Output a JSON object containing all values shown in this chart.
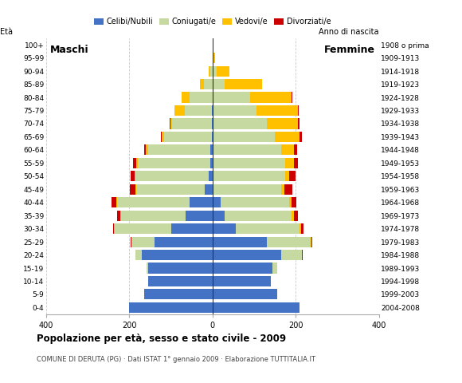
{
  "age_groups": [
    "100+",
    "95-99",
    "90-94",
    "85-89",
    "80-84",
    "75-79",
    "70-74",
    "65-69",
    "60-64",
    "55-59",
    "50-54",
    "45-49",
    "40-44",
    "35-39",
    "30-34",
    "25-29",
    "20-24",
    "15-19",
    "10-14",
    "5-9",
    "0-4"
  ],
  "birth_years": [
    "1908 o prima",
    "1909-1913",
    "1914-1918",
    "1919-1923",
    "1924-1928",
    "1929-1933",
    "1934-1938",
    "1939-1943",
    "1944-1948",
    "1949-1953",
    "1954-1958",
    "1959-1963",
    "1964-1968",
    "1969-1973",
    "1974-1978",
    "1979-1983",
    "1984-1988",
    "1989-1993",
    "1994-1998",
    "1999-2003",
    "2004-2008"
  ],
  "male_celibe": [
    0,
    0,
    0,
    0,
    0,
    2,
    2,
    2,
    5,
    5,
    10,
    18,
    55,
    65,
    100,
    140,
    170,
    155,
    155,
    165,
    200
  ],
  "male_coniugato": [
    0,
    0,
    5,
    20,
    55,
    65,
    95,
    115,
    150,
    175,
    175,
    165,
    175,
    155,
    135,
    55,
    15,
    3,
    0,
    0,
    0
  ],
  "male_vedovo": [
    0,
    0,
    5,
    10,
    20,
    25,
    5,
    5,
    5,
    3,
    3,
    2,
    2,
    2,
    2,
    0,
    0,
    0,
    0,
    0,
    0
  ],
  "male_divorziato": [
    0,
    0,
    0,
    0,
    0,
    0,
    2,
    2,
    5,
    8,
    8,
    13,
    10,
    8,
    3,
    2,
    0,
    0,
    0,
    0,
    0
  ],
  "female_celibe": [
    0,
    0,
    0,
    0,
    0,
    0,
    0,
    0,
    0,
    0,
    0,
    0,
    20,
    30,
    55,
    130,
    165,
    145,
    140,
    155,
    210
  ],
  "female_coniugato": [
    0,
    2,
    10,
    30,
    90,
    105,
    130,
    150,
    165,
    175,
    175,
    165,
    165,
    160,
    155,
    105,
    50,
    10,
    0,
    0,
    0
  ],
  "female_vedovo": [
    2,
    5,
    30,
    90,
    100,
    100,
    75,
    60,
    30,
    20,
    10,
    8,
    5,
    5,
    3,
    2,
    0,
    0,
    0,
    0,
    0
  ],
  "female_divorziato": [
    0,
    0,
    0,
    0,
    2,
    2,
    5,
    5,
    8,
    10,
    15,
    18,
    12,
    10,
    5,
    2,
    2,
    0,
    0,
    0,
    0
  ],
  "colors": {
    "celibe": "#4472C4",
    "coniugato": "#C5D9A0",
    "vedovo": "#FFC000",
    "divorziato": "#CC0000"
  },
  "title": "Popolazione per età, sesso e stato civile - 2009",
  "subtitle": "COMUNE DI DERUTA (PG) · Dati ISTAT 1° gennaio 2009 · Elaborazione TUTTITALIA.IT",
  "xlim": 400,
  "background_color": "#ffffff",
  "grid_color": "#bbbbbb"
}
